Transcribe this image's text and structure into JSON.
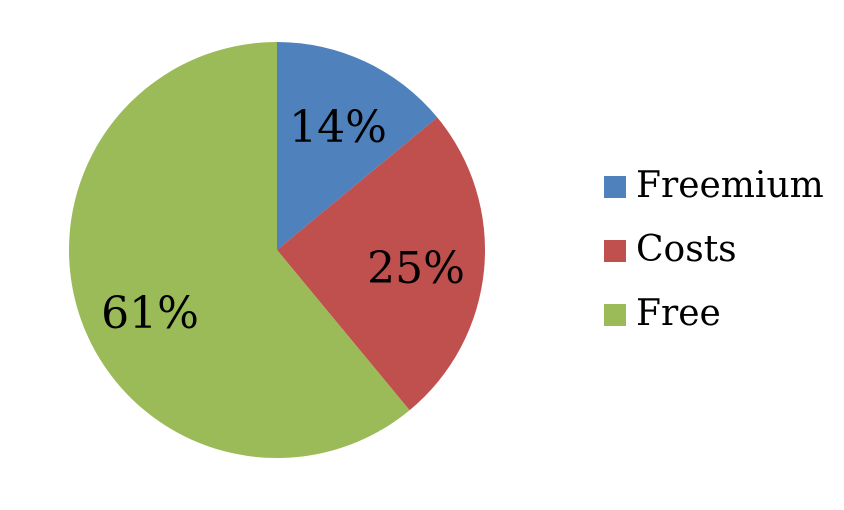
{
  "chart_data": {
    "type": "pie",
    "title": "",
    "legend_position": "right",
    "slices": [
      {
        "name": "Freemium",
        "value": 14,
        "label": "14%",
        "color": "#4F81BD"
      },
      {
        "name": "Costs",
        "value": 25,
        "label": "25%",
        "color": "#C0504D"
      },
      {
        "name": "Free",
        "value": 61,
        "label": "61%",
        "color": "#9BBB59"
      }
    ]
  }
}
